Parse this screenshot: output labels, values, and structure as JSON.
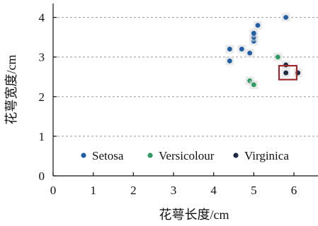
{
  "chart_data": {
    "type": "scatter",
    "title": "",
    "xlabel": "花萼长度/cm",
    "ylabel": "花萼宽度/cm",
    "xlim": [
      0,
      6.6
    ],
    "ylim": [
      0,
      4.35
    ],
    "xticks": [
      "0",
      "1",
      "2",
      "3",
      "4",
      "5",
      "6"
    ],
    "yticks": [
      "0",
      "1",
      "2",
      "3",
      "4"
    ],
    "grid": "horizontal-dashed",
    "legend_position": "bottom",
    "series": [
      {
        "name": "Setosa",
        "color": "#1f5fa8",
        "points": [
          {
            "x": 4.4,
            "y": 3.2
          },
          {
            "x": 4.4,
            "y": 2.9
          },
          {
            "x": 4.7,
            "y": 3.2
          },
          {
            "x": 4.9,
            "y": 3.1
          },
          {
            "x": 5.0,
            "y": 3.4
          },
          {
            "x": 5.0,
            "y": 3.5
          },
          {
            "x": 5.0,
            "y": 3.6
          },
          {
            "x": 5.1,
            "y": 3.8
          },
          {
            "x": 5.8,
            "y": 4.0
          }
        ]
      },
      {
        "name": "Versicolour",
        "color": "#2e9b60",
        "points": [
          {
            "x": 4.9,
            "y": 2.4
          },
          {
            "x": 5.0,
            "y": 2.3
          },
          {
            "x": 5.6,
            "y": 3.0
          }
        ]
      },
      {
        "name": "Virginica",
        "color": "#1c2b45",
        "points": [
          {
            "x": 5.8,
            "y": 2.8
          },
          {
            "x": 5.8,
            "y": 2.6
          },
          {
            "x": 6.1,
            "y": 2.6
          }
        ]
      }
    ],
    "highlight_box": {
      "x_range": [
        5.63,
        6.07
      ],
      "y_range": [
        2.43,
        2.78
      ],
      "color": "#a0282c"
    }
  }
}
